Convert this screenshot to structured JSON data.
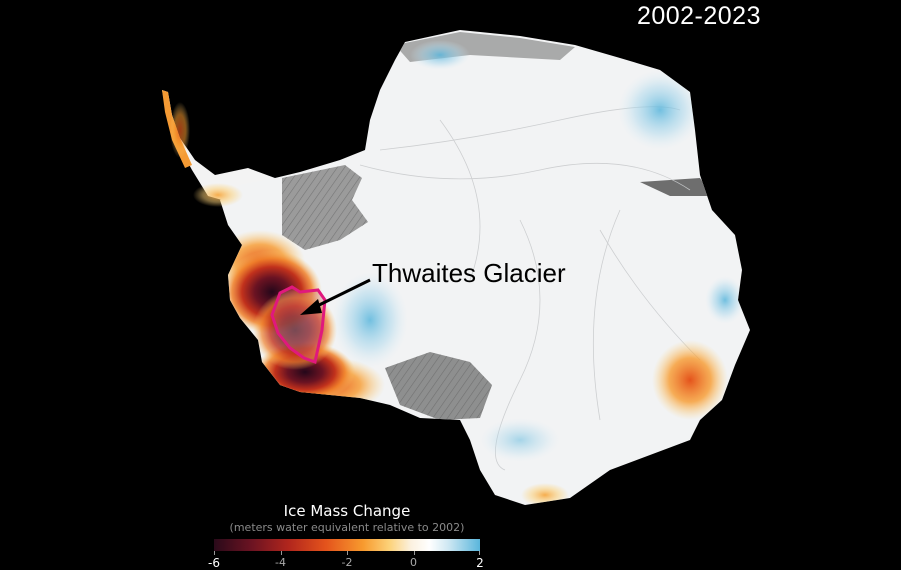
{
  "period": "2002-2023",
  "annotation": {
    "label": "Thwaites Glacier"
  },
  "legend": {
    "title": "Ice Mass Change",
    "subtitle": "(meters water equivalent relative to 2002)",
    "ticks": [
      "-6",
      "-4",
      "-2",
      "0",
      "2"
    ],
    "range": [
      -6,
      2
    ]
  },
  "colors": {
    "background": "#000000",
    "ice": "#f2f3f4",
    "ice_shelf": "#7d7d7d",
    "highlight_outline": "#e0197d",
    "arrow": "#000000",
    "loss_strong": "#2a0a1a",
    "loss_mid": "#c8341c",
    "loss_low": "#f7a63a",
    "gain": "#5ab6dc"
  }
}
